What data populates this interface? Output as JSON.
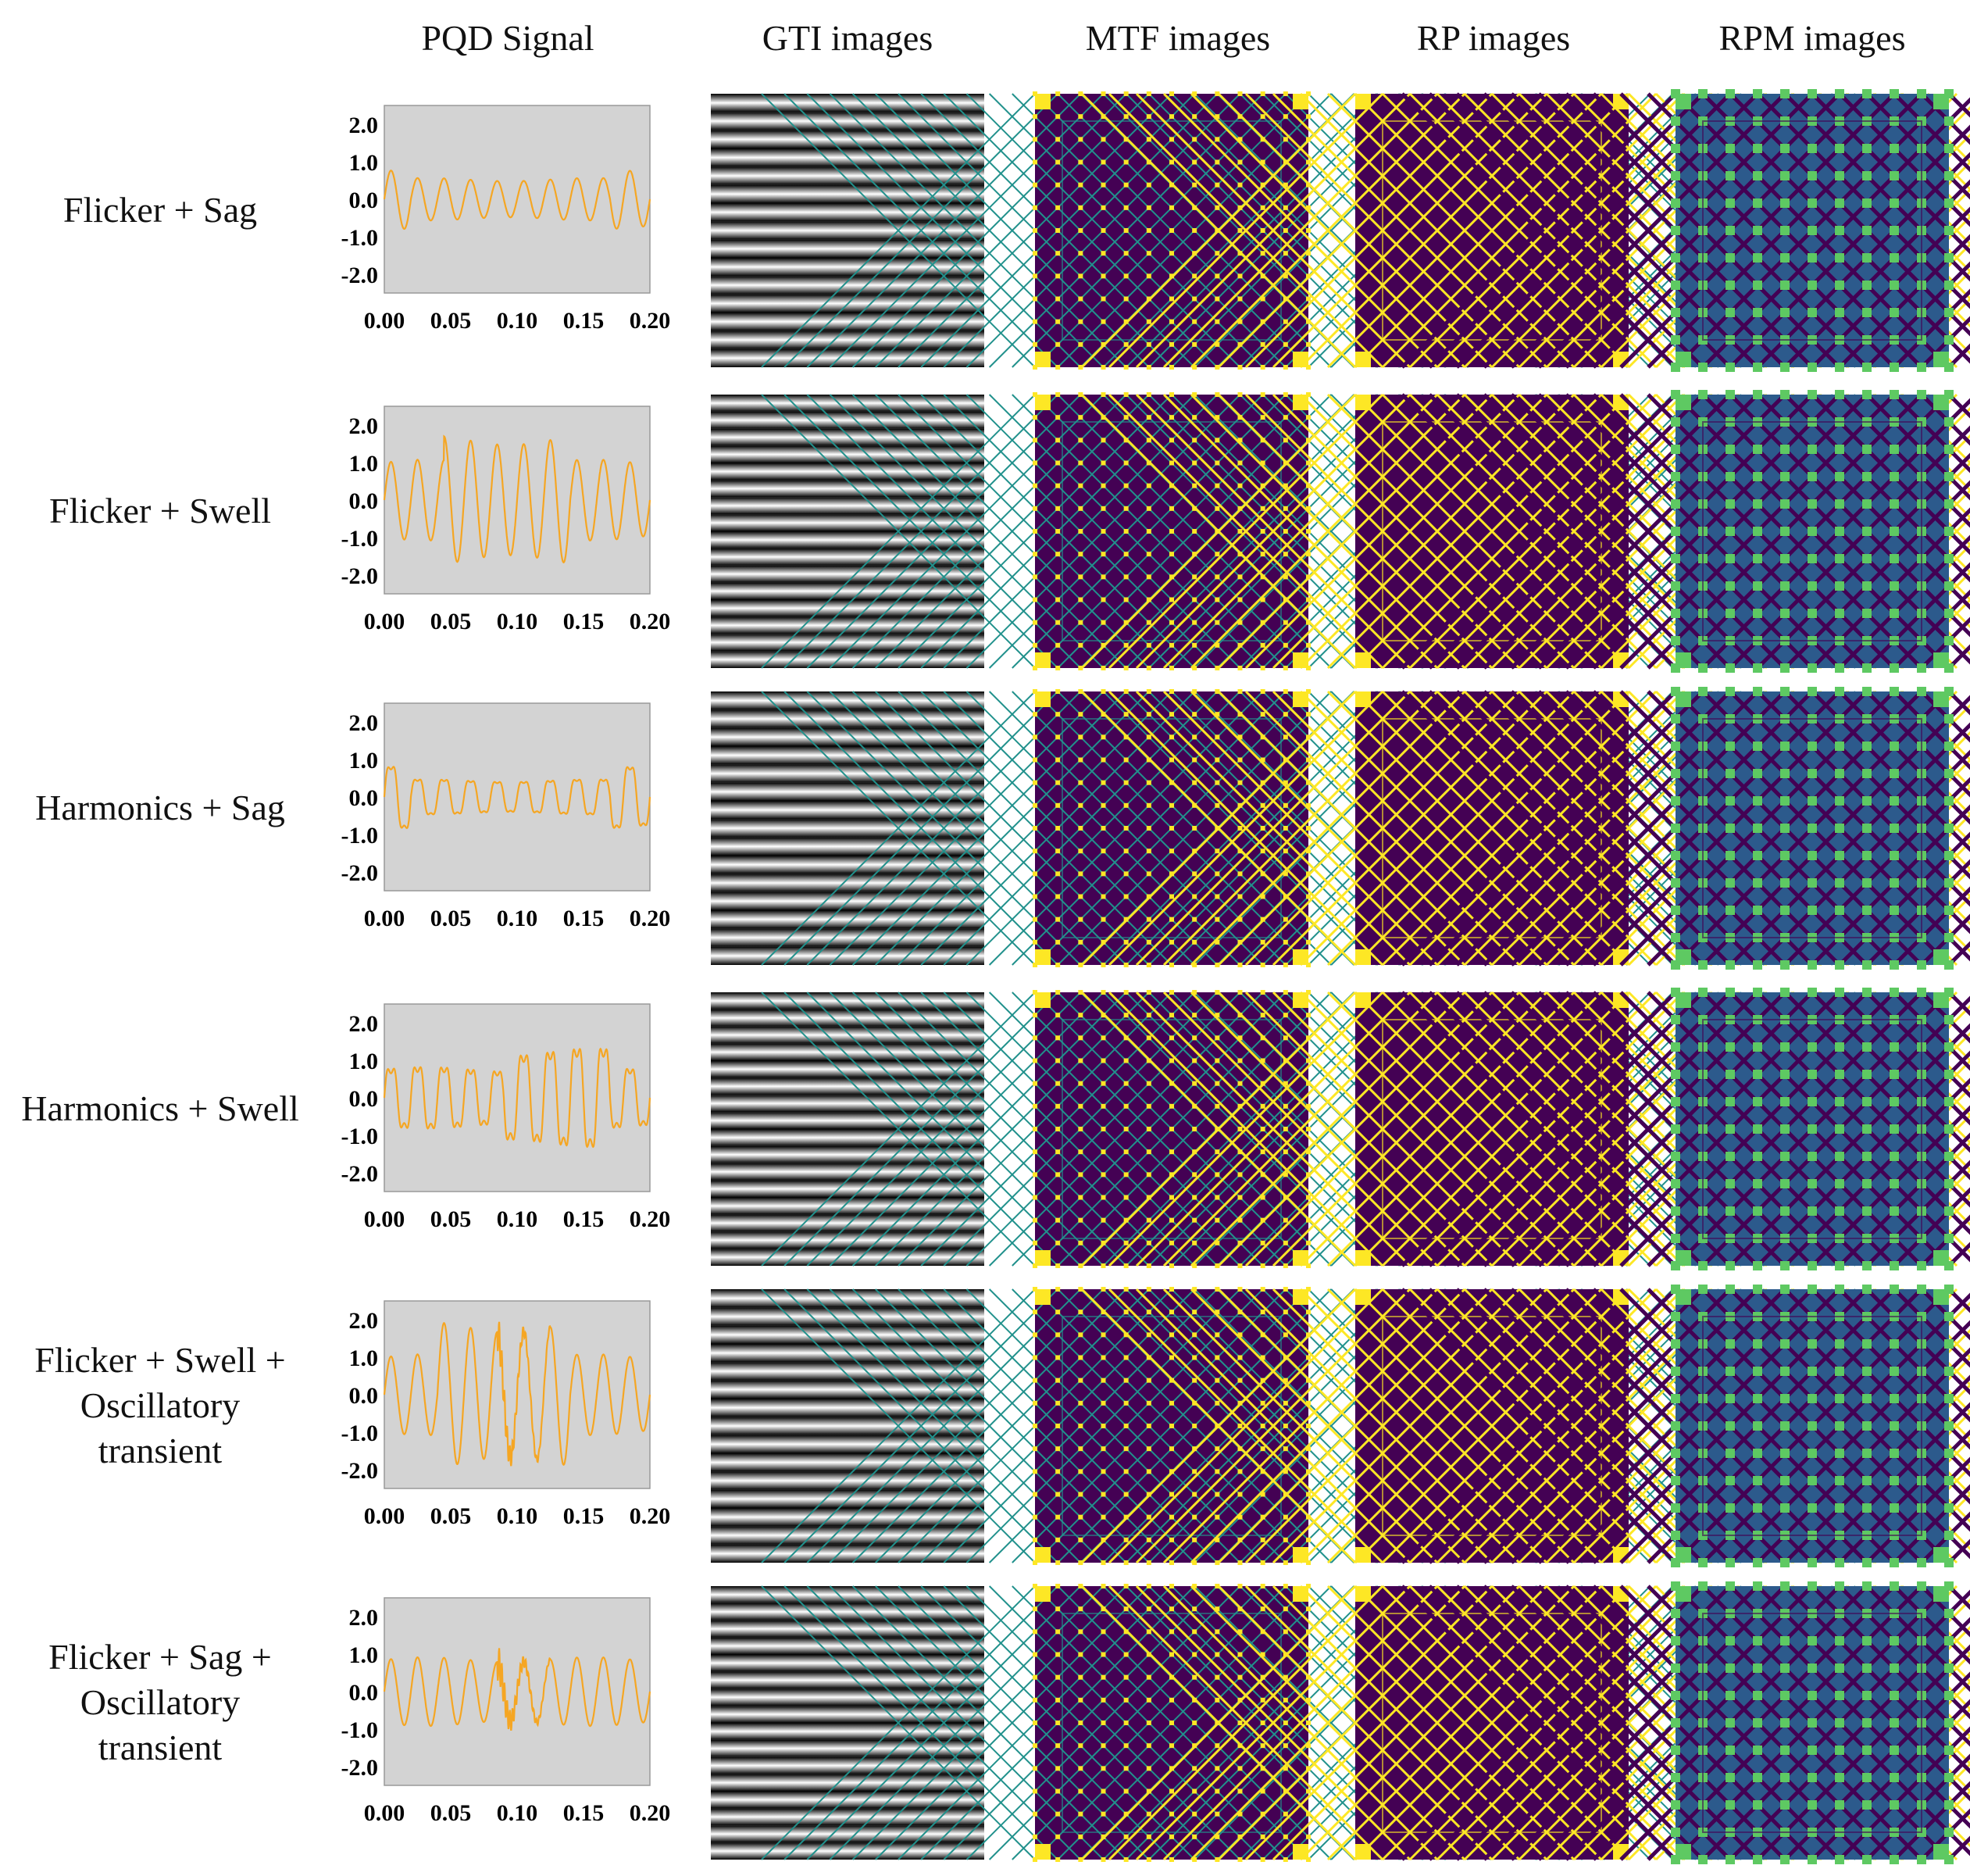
{
  "column_headers": {
    "signal": "PQD Signal",
    "gti": "GTI images",
    "mtf": "MTF images",
    "rp": "RP images",
    "rpm": "RPM images"
  },
  "rows": [
    {
      "label_lines": [
        "Flicker + Sag"
      ],
      "signal": {
        "base_amp": 0.75,
        "events": [
          {
            "start": 0.02,
            "end": 0.17,
            "factor": 0.7
          }
        ],
        "harmonics": 0,
        "osc": false
      }
    },
    {
      "label_lines": [
        "Flicker + Swell"
      ],
      "signal": {
        "base_amp": 1.0,
        "events": [
          {
            "start": 0.045,
            "end": 0.14,
            "factor": 1.6
          }
        ],
        "harmonics": 0,
        "osc": false
      }
    },
    {
      "label_lines": [
        "Harmonics + Sag"
      ],
      "signal": {
        "base_amp": 0.9,
        "events": [
          {
            "start": 0.02,
            "end": 0.17,
            "factor": 0.55
          }
        ],
        "harmonics": 0.2,
        "osc": false
      }
    },
    {
      "label_lines": [
        "Harmonics + Swell"
      ],
      "signal": {
        "base_amp": 0.85,
        "events": [
          {
            "start": 0.09,
            "end": 0.17,
            "factor": 1.6
          }
        ],
        "harmonics": 0.25,
        "osc": false
      }
    },
    {
      "label_lines": [
        "Flicker + Swell +",
        "Oscillatory",
        "transient"
      ],
      "signal": {
        "base_amp": 1.0,
        "events": [
          {
            "start": 0.04,
            "end": 0.14,
            "factor": 1.8
          }
        ],
        "harmonics": 0,
        "osc": true
      }
    },
    {
      "label_lines": [
        "Flicker + Sag +",
        "Oscillatory",
        "transient"
      ],
      "signal": {
        "base_amp": 0.85,
        "events": [
          {
            "start": 0.02,
            "end": 0.17,
            "factor": 1.0
          }
        ],
        "harmonics": 0,
        "osc": true
      }
    }
  ],
  "axes": {
    "y_ticks": [
      "2.0",
      "1.0",
      "0.0",
      "-1.0",
      "-2.0"
    ],
    "y_tick_values": [
      2.0,
      1.0,
      0.0,
      -1.0,
      -2.0
    ],
    "x_ticks": [
      "0.00",
      "0.05",
      "0.10",
      "0.15",
      "0.20"
    ],
    "x_tick_values": [
      0.0,
      0.05,
      0.1,
      0.15,
      0.2
    ],
    "ylim": [
      -2.5,
      2.5
    ],
    "xlim": [
      0.0,
      0.2
    ]
  },
  "colors": {
    "signal_line": "#f5a623",
    "plot_bg": "#d3d3d3",
    "viridis_dark": "#440154",
    "viridis_mid": "#21918c",
    "viridis_green": "#5ec962",
    "viridis_yellow": "#fde725",
    "rpm_base": "#2c5a8c"
  }
}
